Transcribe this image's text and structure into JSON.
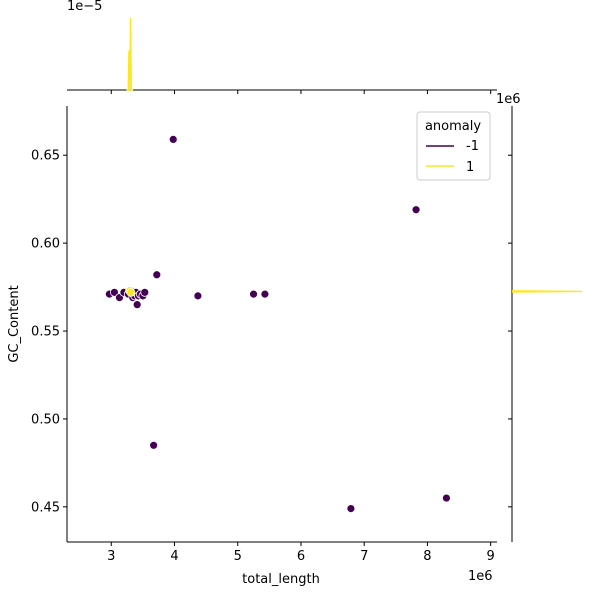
{
  "colors": {
    "anomaly_neg": "#440154",
    "anomaly_pos": "#fde725",
    "axis": "#000000",
    "point_edge": "#ffffff"
  },
  "chart_data": {
    "type": "scatter",
    "xlabel": "total_length",
    "ylabel": "GC_Content",
    "x_offset_label": "1e6",
    "top_marginal_offset_label": "1e−5",
    "right_marginal_offset_label": "1e6",
    "xlim": [
      2300000,
      9100000
    ],
    "ylim": [
      0.43,
      0.678
    ],
    "x_ticks": [
      3000000,
      4000000,
      5000000,
      6000000,
      7000000,
      8000000,
      9000000
    ],
    "x_tick_labels": [
      "3",
      "4",
      "5",
      "6",
      "7",
      "8",
      "9"
    ],
    "y_ticks": [
      0.45,
      0.5,
      0.55,
      0.6,
      0.65
    ],
    "y_tick_labels": [
      "0.45",
      "0.50",
      "0.55",
      "0.60",
      "0.65"
    ],
    "grid": false,
    "legend": {
      "title": "anomaly",
      "placement": "top-right",
      "entries": [
        {
          "label": "-1",
          "color": "#440154"
        },
        {
          "label": "1",
          "color": "#fde725"
        }
      ]
    },
    "series": [
      {
        "name": "-1",
        "color": "#440154",
        "points": [
          [
            3980000,
            0.659
          ],
          [
            7820000,
            0.619
          ],
          [
            3720000,
            0.582
          ],
          [
            2970000,
            0.571
          ],
          [
            3050000,
            0.572
          ],
          [
            3130000,
            0.569
          ],
          [
            3200000,
            0.572
          ],
          [
            3270000,
            0.571
          ],
          [
            3310000,
            0.573
          ],
          [
            3340000,
            0.569
          ],
          [
            3370000,
            0.57
          ],
          [
            3390000,
            0.572
          ],
          [
            3410000,
            0.565
          ],
          [
            3430000,
            0.57
          ],
          [
            3460000,
            0.571
          ],
          [
            3500000,
            0.57
          ],
          [
            3530000,
            0.572
          ],
          [
            4370000,
            0.57
          ],
          [
            5250000,
            0.571
          ],
          [
            5430000,
            0.571
          ],
          [
            3670000,
            0.485
          ],
          [
            6790000,
            0.449
          ],
          [
            8300000,
            0.455
          ]
        ]
      },
      {
        "name": "1",
        "color": "#fde725",
        "points": [
          [
            3290000,
            0.573
          ],
          [
            3310000,
            0.572
          ]
        ]
      }
    ],
    "top_marginal": {
      "type": "kde",
      "series": "1",
      "peaks": [
        {
          "x": 3280000,
          "height": 0.55
        },
        {
          "x": 3305000,
          "height": 1.0
        }
      ]
    },
    "right_marginal": {
      "type": "kde",
      "series": "1",
      "peak_y": 0.5725
    }
  }
}
